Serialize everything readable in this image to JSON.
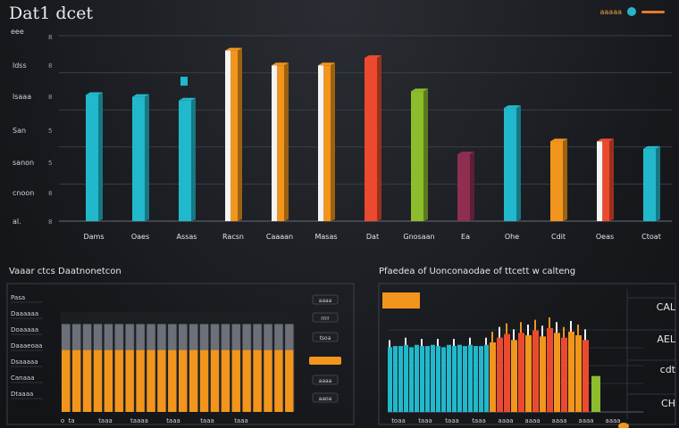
{
  "header": {
    "title": "Dat1 dcet",
    "toolbar_label": "aaaaa"
  },
  "colors": {
    "cyan": "#22b8cc",
    "orange": "#f2951c",
    "white": "#f4f4f4",
    "red": "#ec4a2e",
    "green": "#8cbd2c",
    "maroon": "#8e2f52",
    "gray": "#7a7f88"
  },
  "chart_data": [
    {
      "type": "bar",
      "title": "",
      "ylabel_top": "eee",
      "yticks": [
        "ldss",
        "lsaaa",
        "San",
        "sanon",
        "cnoon",
        "al."
      ],
      "ytick_nums": [
        "8",
        "8",
        "5",
        "5",
        "8",
        "8"
      ],
      "categories": [
        "Dams",
        "Oaes",
        "Assas",
        "Racsn",
        "Caaaan",
        "Masas",
        "Dat",
        "Gnosaan",
        "Ea",
        "Ohe",
        "Cdit",
        "Oeas",
        "Ctoat"
      ],
      "values": [
        68,
        67,
        65,
        92,
        84,
        84,
        88,
        70,
        36,
        61,
        43,
        43,
        39
      ],
      "caps": [
        0,
        0,
        70,
        0,
        0,
        0,
        0,
        0,
        0,
        0,
        0,
        0,
        0
      ],
      "colors": [
        "cyan",
        "cyan",
        "cyan",
        "orange",
        "orange",
        "orange",
        "red",
        "green",
        "maroon",
        "cyan",
        "orange",
        "red",
        "cyan"
      ],
      "faces": [
        "",
        "",
        "",
        "white",
        "white",
        "white",
        "",
        "",
        "",
        "",
        "",
        "white",
        ""
      ],
      "ylim": [
        0,
        100
      ]
    },
    {
      "type": "bar",
      "title": "Vaaar ctcs Daatnonetcon",
      "yticks": [
        "Pasa",
        "Daaaaaa",
        "Doaaaaa",
        "Daaaeoaa",
        "Dsaaaaa",
        "Canaaa",
        "Dtaaaa"
      ],
      "legend": [
        "aaaa",
        "rrrr",
        "tsoa",
        "",
        "aaaa",
        "aaoa"
      ],
      "xticks": [
        "ta",
        "taaa",
        "taaaa",
        "taaa",
        "taaa",
        "taaa"
      ],
      "bars": 22,
      "orange_level": 0.62,
      "top_level": 0.88,
      "ylim": [
        0,
        1
      ]
    },
    {
      "type": "bar",
      "title": "Pfaedea of Uonconaodae of ttcett w calteng",
      "legend_label": "",
      "right_labels": [
        "CAL",
        "AEL",
        "cdt",
        "CH"
      ],
      "xticks": [
        "toaa",
        "taaa",
        "taaa",
        "taaa",
        "aaaa",
        "aaaa",
        "aaaa",
        "aaaa",
        "aaaa"
      ],
      "cyan_values": [
        54,
        55,
        55,
        56,
        54,
        56,
        55,
        55,
        56,
        55,
        54,
        56,
        55,
        56,
        55,
        56,
        55,
        55,
        56
      ],
      "warm_values": [
        58,
        62,
        65,
        60,
        66,
        64,
        68,
        63,
        70,
        66,
        62,
        67,
        64,
        60
      ],
      "warm_colors": [
        "orange",
        "red",
        "red",
        "orange",
        "red",
        "orange",
        "red",
        "orange",
        "red",
        "orange",
        "red",
        "orange",
        "orange",
        "red"
      ],
      "green_value": 30,
      "ylim": [
        0,
        100
      ]
    }
  ]
}
